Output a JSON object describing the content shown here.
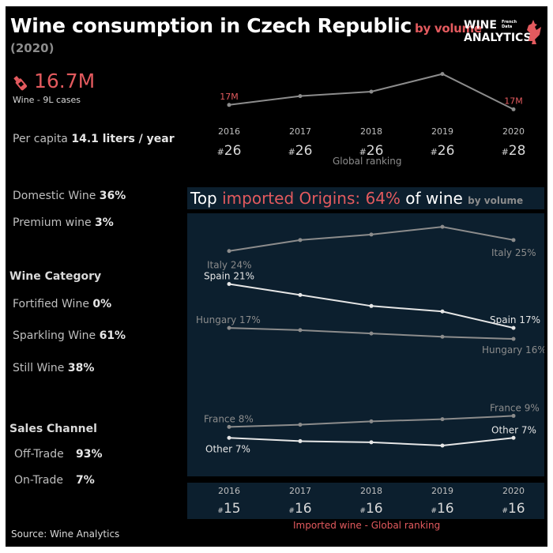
{
  "header": {
    "title": "Wine consumption in Czech Republic",
    "subtitle": "by volume",
    "year": "(2020)"
  },
  "logo": {
    "line1": "WINE",
    "line2": "ANALYTICS",
    "tag1": "French",
    "tag2": "Data"
  },
  "colors": {
    "accent": "#e35a5e",
    "background": "#000000",
    "panel": "#0c1f2e",
    "line": "#8c8c8c",
    "highlight": "#ffffff"
  },
  "summary": {
    "icon": "wine-bottle-icon",
    "volume": "16.7M",
    "volume_label": "Wine - 9L cases",
    "per_capita_label": "Per capita",
    "per_capita_value": "14.1 liters / year",
    "domestic_label": "Domestic Wine",
    "domestic_value": "36%",
    "premium_label": "Premium wine",
    "premium_value": "3%"
  },
  "category": {
    "title": "Wine Category",
    "items": [
      {
        "label": "Fortified Wine",
        "value": "0%"
      },
      {
        "label": "Sparkling Wine",
        "value": "61%"
      },
      {
        "label": "Still Wine",
        "value": "38%"
      }
    ]
  },
  "sales_channel": {
    "title": "Sales Channel",
    "items": [
      {
        "label": "Off-Trade",
        "value": "93%"
      },
      {
        "label": "On-Trade",
        "value": "7%"
      }
    ]
  },
  "import_panel": {
    "title_prefix": "Top",
    "title_red": "imported Origins: 64%",
    "title_suffix": "of wine",
    "title_small": "by volume"
  },
  "imported_ranking_label": "Imported wine - Global ranking",
  "global_ranking_label": "Global ranking",
  "source": "Source: Wine Analytics",
  "chart_data": [
    {
      "type": "line",
      "name": "consumption-trend",
      "x": [
        "2016",
        "2017",
        "2018",
        "2019",
        "2020"
      ],
      "values": [
        17.0,
        17.6,
        17.9,
        19.1,
        16.7
      ],
      "labels": {
        "first": "17M",
        "last": "17M"
      },
      "ranking": [
        "#26",
        "#26",
        "#26",
        "#26",
        "#28"
      ]
    },
    {
      "type": "line",
      "name": "imported-origins",
      "x": [
        "2016",
        "2017",
        "2018",
        "2019",
        "2020"
      ],
      "ylim": [
        4,
        27
      ],
      "series": [
        {
          "name": "Italy",
          "values": [
            24,
            25,
            25.5,
            26.2,
            25
          ],
          "first_label": "Italy 24%",
          "last_label": "Italy 25%",
          "highlight": false
        },
        {
          "name": "Spain",
          "values": [
            21,
            20,
            19,
            18.5,
            17
          ],
          "first_label": "Spain 21%",
          "last_label": "Spain 17%",
          "highlight": true
        },
        {
          "name": "Hungary",
          "values": [
            17,
            16.8,
            16.5,
            16.2,
            16
          ],
          "first_label": "Hungary 17%",
          "last_label": "Hungary 16%",
          "highlight": false
        },
        {
          "name": "France",
          "values": [
            8,
            8.2,
            8.5,
            8.7,
            9
          ],
          "first_label": "France 8%",
          "last_label": "France 9%",
          "highlight": false
        },
        {
          "name": "Other",
          "values": [
            7,
            6.7,
            6.6,
            6.3,
            7
          ],
          "first_label": "Other 7%",
          "last_label": "Other 7%",
          "highlight": true
        }
      ],
      "ranking": [
        "#15",
        "#16",
        "#16",
        "#16",
        "#16"
      ]
    }
  ]
}
